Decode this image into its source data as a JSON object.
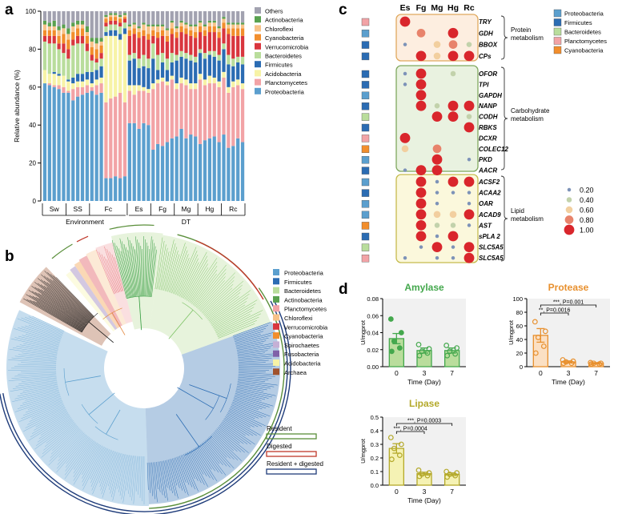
{
  "panel_labels": {
    "a": "a",
    "b": "b",
    "c": "c",
    "d": "d"
  },
  "colors": {
    "Proteobacteria": "#5b9fce",
    "Planctomycetes": "#f2a3a6",
    "Acidobacteria": "#f7f3a6",
    "Firmicutes": "#2b6cb3",
    "Bacteroidetes": "#b9dd9c",
    "Verrucomicrobia": "#d9363e",
    "Cyanobacteria": "#f28e2c",
    "Chloroflexi": "#f7c289",
    "Actinobacteria": "#59a14f",
    "Others": "#a2a2b0",
    "Spirochaetes": "#c5b0d5",
    "Fusobacteria": "#8061a8",
    "Archaea": "#a0522d"
  },
  "chart_data": [
    {
      "id": "a",
      "type": "bar",
      "stacked": true,
      "ylabel": "Relative abundance (%)",
      "ylim": [
        0,
        100
      ],
      "yticks": [
        "0",
        "20",
        "40",
        "60",
        "80",
        "100"
      ],
      "groups": [
        "Sw",
        "SS",
        "Fc",
        "Es",
        "Fg",
        "Mg",
        "Hg",
        "Rc"
      ],
      "group_bar_counts": [
        5,
        5,
        8,
        5,
        5,
        5,
        5,
        5
      ],
      "supergroups": [
        "Environment",
        "DT"
      ],
      "legend": [
        "Others",
        "Actinobacteria",
        "Chloroflexi",
        "Cyanobacteria",
        "Verrucomicrobia",
        "Bacteroidetes",
        "Firmicutes",
        "Acidobacteria",
        "Planctomycetes",
        "Proteobacteria"
      ],
      "series_order": [
        "Proteobacteria",
        "Planctomycetes",
        "Acidobacteria",
        "Firmicutes",
        "Bacteroidetes",
        "Verrucomicrobia",
        "Cyanobacteria",
        "Chloroflexi",
        "Actinobacteria"
      ],
      "bars": [
        [
          62,
          0,
          7,
          0,
          15,
          3,
          3,
          3,
          2
        ],
        [
          61,
          1,
          5,
          0,
          16,
          4,
          3,
          2,
          2
        ],
        [
          60,
          1,
          6,
          1,
          15,
          4,
          3,
          2,
          3
        ],
        [
          59,
          2,
          5,
          1,
          13,
          3,
          4,
          3,
          2
        ],
        [
          57,
          3,
          6,
          0,
          12,
          5,
          5,
          3,
          2
        ],
        [
          57,
          1,
          5,
          1,
          11,
          5,
          5,
          3,
          3
        ],
        [
          53,
          6,
          3,
          3,
          17,
          3,
          4,
          3,
          2
        ],
        [
          55,
          5,
          3,
          4,
          16,
          4,
          4,
          2,
          2
        ],
        [
          56,
          4,
          3,
          4,
          16,
          4,
          4,
          2,
          2
        ],
        [
          57,
          4,
          3,
          4,
          11,
          4,
          4,
          2,
          3
        ],
        [
          58,
          2,
          2,
          6,
          6,
          3,
          4,
          3,
          2
        ],
        [
          56,
          5,
          3,
          5,
          4,
          2,
          5,
          3,
          3
        ],
        [
          57,
          5,
          3,
          6,
          4,
          3,
          4,
          2,
          2
        ],
        [
          12,
          40,
          35,
          2,
          3,
          2,
          2,
          1,
          1
        ],
        [
          12,
          42,
          33,
          3,
          3,
          2,
          2,
          1,
          1
        ],
        [
          13,
          42,
          32,
          3,
          3,
          2,
          2,
          1,
          1
        ],
        [
          12,
          45,
          28,
          3,
          4,
          2,
          2,
          1,
          1
        ],
        [
          13,
          39,
          36,
          3,
          3,
          2,
          1,
          1,
          1
        ],
        [
          41,
          17,
          3,
          13,
          3,
          10,
          3,
          2,
          1
        ],
        [
          41,
          15,
          5,
          14,
          3,
          10,
          3,
          2,
          1
        ],
        [
          38,
          20,
          3,
          9,
          5,
          11,
          3,
          2,
          1
        ],
        [
          41,
          17,
          2,
          11,
          6,
          10,
          3,
          3,
          1
        ],
        [
          40,
          17,
          2,
          11,
          5,
          10,
          3,
          4,
          1
        ],
        [
          27,
          32,
          3,
          13,
          8,
          4,
          3,
          2,
          1
        ],
        [
          30,
          32,
          2,
          5,
          8,
          9,
          3,
          3,
          1
        ],
        [
          29,
          34,
          2,
          8,
          5,
          9,
          3,
          2,
          1
        ],
        [
          31,
          30,
          2,
          6,
          6,
          9,
          3,
          3,
          1
        ],
        [
          33,
          31,
          2,
          7,
          5,
          10,
          3,
          3,
          1
        ],
        [
          34,
          25,
          3,
          12,
          3,
          9,
          3,
          2,
          1
        ],
        [
          38,
          24,
          3,
          11,
          3,
          10,
          3,
          2,
          1
        ],
        [
          33,
          28,
          3,
          11,
          3,
          10,
          3,
          2,
          1
        ],
        [
          35,
          24,
          3,
          12,
          3,
          10,
          3,
          2,
          1
        ],
        [
          34,
          25,
          3,
          11,
          3,
          10,
          3,
          3,
          1
        ],
        [
          30,
          34,
          3,
          11,
          2,
          9,
          3,
          2,
          1
        ],
        [
          32,
          29,
          3,
          11,
          3,
          9,
          3,
          2,
          1
        ],
        [
          33,
          29,
          4,
          11,
          2,
          10,
          3,
          2,
          1
        ],
        [
          34,
          28,
          3,
          11,
          3,
          10,
          3,
          2,
          1
        ],
        [
          31,
          29,
          3,
          11,
          3,
          9,
          3,
          2,
          1
        ],
        [
          35,
          30,
          3,
          12,
          3,
          8,
          3,
          2,
          1
        ],
        [
          28,
          29,
          3,
          12,
          5,
          11,
          3,
          2,
          1
        ],
        [
          29,
          31,
          3,
          8,
          4,
          12,
          4,
          2,
          1
        ],
        [
          33,
          28,
          3,
          9,
          3,
          11,
          4,
          2,
          1
        ],
        [
          31,
          28,
          3,
          10,
          4,
          11,
          4,
          2,
          1
        ]
      ]
    },
    {
      "id": "b",
      "type": "tree",
      "legend": [
        "Proteobacteria",
        "Firmicutes",
        "Bacteroidetes",
        "Actinobacteria",
        "Planctomycetes",
        "Chloroflexi",
        "Verrucomicrobia",
        "Cyanobacteria",
        "Spirochaetes",
        "Fusobacteria",
        "Acidobacteria",
        "Archaea"
      ],
      "ring_legend": [
        "Resident",
        "Digested",
        "Resident + digested"
      ]
    },
    {
      "id": "c",
      "type": "scatter",
      "x": [
        "Es",
        "Fg",
        "Mg",
        "Hg",
        "Rc"
      ],
      "genes": [
        "TRY",
        "GDH",
        "BBOX",
        "CPs",
        "OFOR",
        "TPI",
        "GAPDH",
        "NANP",
        "CODH",
        "RBKS",
        "DCXR",
        "COLEC12",
        "PKD",
        "AACR",
        "ACSF2",
        "ACAA2",
        "OAR",
        "ACAD9",
        "AST",
        "sPLA 2",
        "SLC5A5",
        "SLC5A5"
      ],
      "gene_phylum": [
        "Planctomycetes",
        "Proteobacteria",
        "Firmicutes",
        "Firmicutes",
        "Firmicutes",
        "Firmicutes",
        "Proteobacteria",
        "Firmicutes",
        "Bacteroidetes",
        "Firmicutes",
        "Planctomycetes",
        "Cyanobacteria",
        "Proteobacteria",
        "Firmicutes",
        "Proteobacteria",
        "Firmicutes",
        "Proteobacteria",
        "Proteobacteria",
        "Cyanobacteria",
        "Firmicutes",
        "Bacteroidetes",
        "Planctomycetes"
      ],
      "values": [
        [
          1.0,
          null,
          null,
          null,
          null
        ],
        [
          null,
          0.8,
          null,
          1.0,
          null
        ],
        [
          0.2,
          null,
          0.6,
          0.8,
          0.4
        ],
        [
          null,
          1.0,
          0.6,
          1.0,
          1.0
        ],
        [
          0.2,
          1.0,
          null,
          0.4,
          null
        ],
        [
          0.2,
          1.0,
          null,
          null,
          null
        ],
        [
          null,
          1.0,
          null,
          null,
          null
        ],
        [
          null,
          1.0,
          0.4,
          1.0,
          1.0
        ],
        [
          null,
          null,
          1.0,
          1.0,
          0.4
        ],
        [
          null,
          null,
          null,
          null,
          1.0
        ],
        [
          1.0,
          null,
          null,
          null,
          null
        ],
        [
          0.6,
          null,
          0.8,
          null,
          null
        ],
        [
          null,
          null,
          1.0,
          null,
          0.2
        ],
        [
          0.2,
          1.0,
          1.0,
          null,
          null
        ],
        [
          null,
          1.0,
          0.2,
          1.0,
          1.0
        ],
        [
          null,
          1.0,
          0.2,
          0.2,
          0.2
        ],
        [
          null,
          1.0,
          0.2,
          null,
          0.2
        ],
        [
          null,
          1.0,
          0.6,
          0.6,
          1.0
        ],
        [
          null,
          1.0,
          0.4,
          0.4,
          0.2
        ],
        [
          null,
          1.0,
          0.2,
          1.0,
          null
        ],
        [
          null,
          0.2,
          1.0,
          0.2,
          1.0
        ],
        [
          0.2,
          null,
          0.2,
          0.2,
          1.0
        ]
      ],
      "categories": [
        {
          "label": "Protein\nmetabolism",
          "rows": [
            0,
            3
          ]
        },
        {
          "label": "Carbohydrate\nmetabolism",
          "rows": [
            4,
            13
          ]
        },
        {
          "label": "Lipid\nmetabolism",
          "rows": [
            14,
            21
          ]
        }
      ],
      "legend_phyla": [
        "Proteobacteria",
        "Firmicutes",
        "Bacteroidetes",
        "Planctomycetes",
        "Cyanobacteria"
      ],
      "size_legend": [
        0.2,
        0.4,
        0.6,
        0.8,
        1.0
      ],
      "size_labels": [
        "0.20",
        "0.40",
        "0.60",
        "0.80",
        "1.00"
      ]
    },
    {
      "id": "d-amylase",
      "type": "bar",
      "title": "Amylase",
      "xlabel": "Time (Day)",
      "ylabel": "U/mgprot",
      "categories": [
        "0",
        "3",
        "7"
      ],
      "values": [
        0.033,
        0.019,
        0.019
      ],
      "errors": [
        0.006,
        0.003,
        0.003
      ],
      "points": [
        [
          0.056,
          0.04,
          0.03,
          0.022,
          0.018
        ],
        [
          0.026,
          0.021,
          0.018,
          0.016,
          0.013
        ],
        [
          0.025,
          0.022,
          0.018,
          0.015,
          0.013
        ]
      ],
      "ylim": [
        0,
        0.08
      ],
      "yticks": [
        "0.00",
        "0.02",
        "0.04",
        "0.06",
        "0.08"
      ],
      "color": "#44a84d",
      "fill": "#b9dd9c"
    },
    {
      "id": "d-protease",
      "type": "bar",
      "title": "Protease",
      "xlabel": "Time (Day)",
      "ylabel": "U/mgprot",
      "categories": [
        "0",
        "3",
        "7"
      ],
      "values": [
        46,
        7,
        5
      ],
      "errors": [
        10,
        1.5,
        1
      ],
      "points": [
        [
          66,
          52,
          43,
          30,
          20
        ],
        [
          10,
          8,
          7,
          5,
          5
        ],
        [
          6,
          5,
          5,
          4,
          4
        ]
      ],
      "ylim": [
        0,
        100
      ],
      "yticks": [
        "0",
        "20",
        "40",
        "60",
        "80",
        "100"
      ],
      "color": "#e8902e",
      "fill": "#fbe0c4",
      "annotations": [
        "***, P=0.001",
        "**, P=0.0016"
      ]
    },
    {
      "id": "d-lipase",
      "type": "bar",
      "title": "Lipase",
      "xlabel": "Time (Day)",
      "ylabel": "U/mgprot",
      "categories": [
        "0",
        "3",
        "7"
      ],
      "values": [
        0.27,
        0.085,
        0.08
      ],
      "errors": [
        0.035,
        0.01,
        0.01
      ],
      "points": [
        [
          0.35,
          0.3,
          0.27,
          0.22,
          0.19
        ],
        [
          0.11,
          0.09,
          0.08,
          0.07,
          0.065
        ],
        [
          0.1,
          0.09,
          0.08,
          0.07,
          0.06
        ]
      ],
      "ylim": [
        0,
        0.5
      ],
      "yticks": [
        "0.0",
        "0.1",
        "0.2",
        "0.3",
        "0.4",
        "0.5"
      ],
      "color": "#b4a92a",
      "fill": "#f5f2b4",
      "annotations": [
        "***, P=0.0003",
        "***, P=0.0004"
      ]
    }
  ]
}
